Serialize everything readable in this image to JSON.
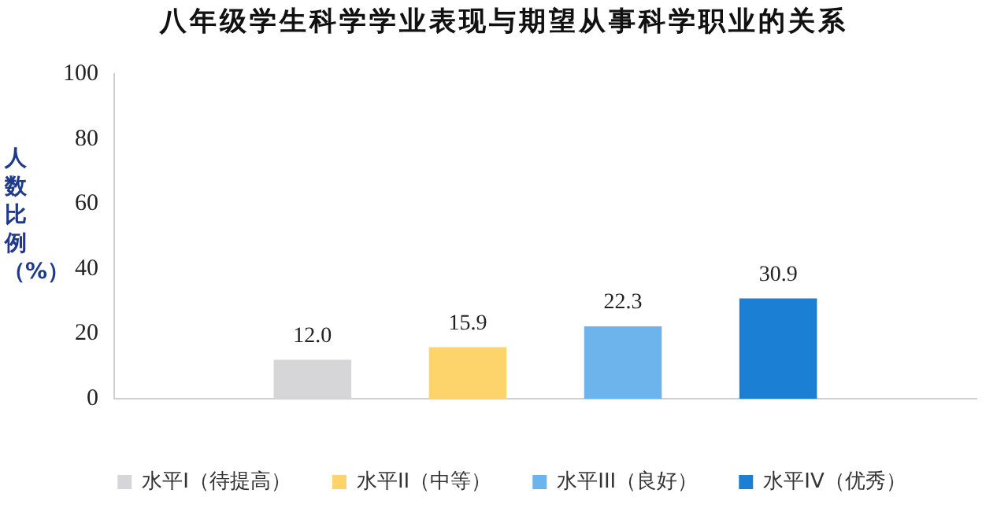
{
  "chart_data": {
    "type": "bar",
    "title": "八年级学生科学学业表现与期望从事科学职业的关系",
    "ylabel": "人数比例（%）",
    "categories": [
      null
    ],
    "series": [
      {
        "name": "水平I（待提高）",
        "color": "#d6d6d8",
        "values": [
          12.0
        ],
        "value_labels": [
          "12.0"
        ]
      },
      {
        "name": "水平II（中等）",
        "color": "#fdd46b",
        "values": [
          15.9
        ],
        "value_labels": [
          "15.9"
        ]
      },
      {
        "name": "水平III（良好）",
        "color": "#6db3ec",
        "values": [
          22.3
        ],
        "value_labels": [
          "22.3"
        ]
      },
      {
        "name": "水平IV（优秀）",
        "color": "#1b7fd3",
        "values": [
          30.9
        ],
        "value_labels": [
          "30.9"
        ]
      }
    ],
    "ylim": [
      0,
      100
    ],
    "yticks": [
      0,
      20,
      40,
      60,
      80,
      100
    ],
    "grid": false,
    "legend": "bottom"
  }
}
